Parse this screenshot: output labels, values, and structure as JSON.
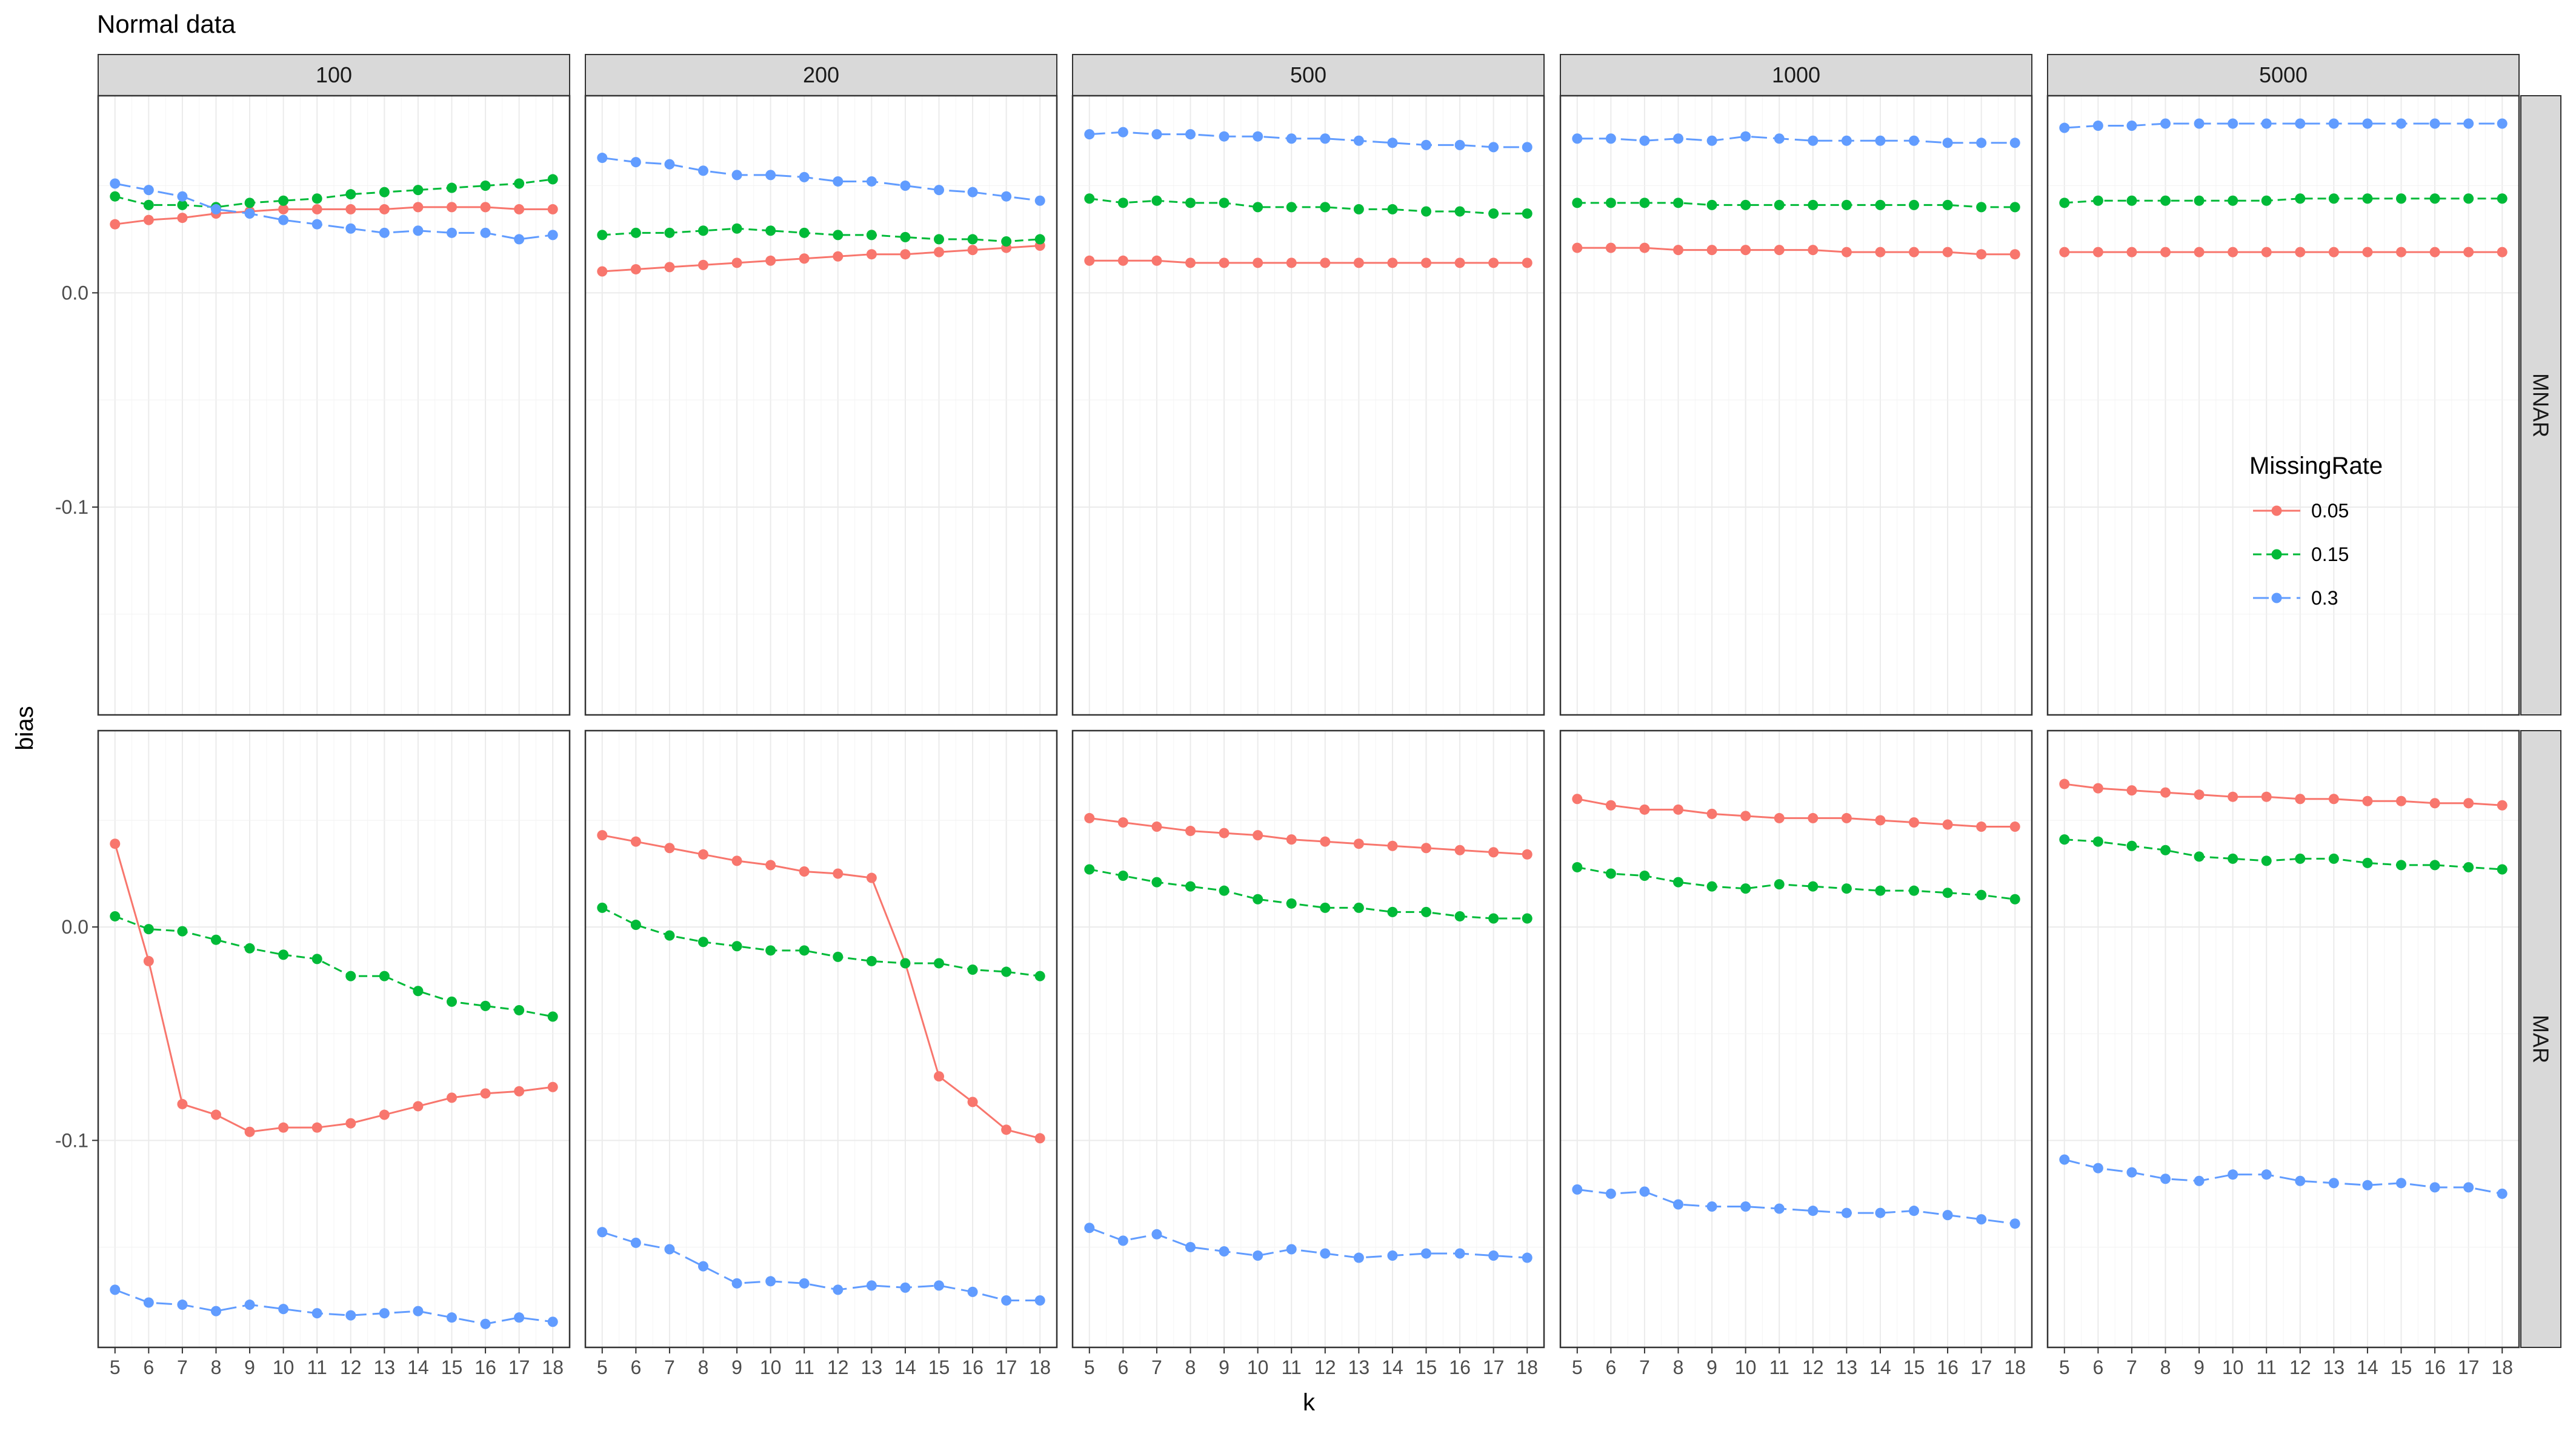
{
  "chart_data": {
    "type": "line",
    "title": "Normal data",
    "xlabel": "k",
    "ylabel": "bias",
    "x": [
      5,
      6,
      7,
      8,
      9,
      10,
      11,
      12,
      13,
      14,
      15,
      16,
      17,
      18
    ],
    "xlim": [
      4.5,
      18.5
    ],
    "ylim": [
      -0.197,
      0.092
    ],
    "y_ticks": [
      0.0,
      -0.1
    ],
    "y_tick_labels": [
      "0.0",
      "-0.1"
    ],
    "grid": true,
    "legend": {
      "title": "MissingRate",
      "placement": "right",
      "entries": [
        {
          "label": "0.05",
          "color": "#F8766D",
          "linetype": "solid"
        },
        {
          "label": "0.15",
          "color": "#00BA38",
          "linetype": "dashed"
        },
        {
          "label": "0.3",
          "color": "#619CFF",
          "linetype": "longdash"
        }
      ]
    },
    "col_facets": [
      "100",
      "200",
      "500",
      "1000",
      "5000"
    ],
    "row_facets": [
      "MNAR",
      "MAR"
    ],
    "panels": [
      {
        "row": "MNAR",
        "col": "100",
        "series": [
          {
            "name": "0.05",
            "values": [
              0.032,
              0.034,
              0.035,
              0.037,
              0.038,
              0.039,
              0.039,
              0.039,
              0.039,
              0.04,
              0.04,
              0.04,
              0.039,
              0.039
            ]
          },
          {
            "name": "0.15",
            "values": [
              0.045,
              0.041,
              0.041,
              0.04,
              0.042,
              0.043,
              0.044,
              0.046,
              0.047,
              0.048,
              0.049,
              0.05,
              0.051,
              0.053
            ]
          },
          {
            "name": "0.3",
            "values": [
              0.051,
              0.048,
              0.045,
              0.039,
              0.037,
              0.034,
              0.032,
              0.03,
              0.028,
              0.029,
              0.028,
              0.028,
              0.025,
              0.027
            ]
          }
        ]
      },
      {
        "row": "MNAR",
        "col": "200",
        "series": [
          {
            "name": "0.05",
            "values": [
              0.01,
              0.011,
              0.012,
              0.013,
              0.014,
              0.015,
              0.016,
              0.017,
              0.018,
              0.018,
              0.019,
              0.02,
              0.021,
              0.022
            ]
          },
          {
            "name": "0.15",
            "values": [
              0.027,
              0.028,
              0.028,
              0.029,
              0.03,
              0.029,
              0.028,
              0.027,
              0.027,
              0.026,
              0.025,
              0.025,
              0.024,
              0.025
            ]
          },
          {
            "name": "0.3",
            "values": [
              0.063,
              0.061,
              0.06,
              0.057,
              0.055,
              0.055,
              0.054,
              0.052,
              0.052,
              0.05,
              0.048,
              0.047,
              0.045,
              0.043
            ]
          }
        ]
      },
      {
        "row": "MNAR",
        "col": "500",
        "series": [
          {
            "name": "0.05",
            "values": [
              0.015,
              0.015,
              0.015,
              0.014,
              0.014,
              0.014,
              0.014,
              0.014,
              0.014,
              0.014,
              0.014,
              0.014,
              0.014,
              0.014
            ]
          },
          {
            "name": "0.15",
            "values": [
              0.044,
              0.042,
              0.043,
              0.042,
              0.042,
              0.04,
              0.04,
              0.04,
              0.039,
              0.039,
              0.038,
              0.038,
              0.037,
              0.037
            ]
          },
          {
            "name": "0.3",
            "values": [
              0.074,
              0.075,
              0.074,
              0.074,
              0.073,
              0.073,
              0.072,
              0.072,
              0.071,
              0.07,
              0.069,
              0.069,
              0.068,
              0.068
            ]
          }
        ]
      },
      {
        "row": "MNAR",
        "col": "1000",
        "series": [
          {
            "name": "0.05",
            "values": [
              0.021,
              0.021,
              0.021,
              0.02,
              0.02,
              0.02,
              0.02,
              0.02,
              0.019,
              0.019,
              0.019,
              0.019,
              0.018,
              0.018
            ]
          },
          {
            "name": "0.15",
            "values": [
              0.042,
              0.042,
              0.042,
              0.042,
              0.041,
              0.041,
              0.041,
              0.041,
              0.041,
              0.041,
              0.041,
              0.041,
              0.04,
              0.04
            ]
          },
          {
            "name": "0.3",
            "values": [
              0.072,
              0.072,
              0.071,
              0.072,
              0.071,
              0.073,
              0.072,
              0.071,
              0.071,
              0.071,
              0.071,
              0.07,
              0.07,
              0.07
            ]
          }
        ]
      },
      {
        "row": "MNAR",
        "col": "5000",
        "series": [
          {
            "name": "0.05",
            "values": [
              0.019,
              0.019,
              0.019,
              0.019,
              0.019,
              0.019,
              0.019,
              0.019,
              0.019,
              0.019,
              0.019,
              0.019,
              0.019,
              0.019
            ]
          },
          {
            "name": "0.15",
            "values": [
              0.042,
              0.043,
              0.043,
              0.043,
              0.043,
              0.043,
              0.043,
              0.044,
              0.044,
              0.044,
              0.044,
              0.044,
              0.044,
              0.044
            ]
          },
          {
            "name": "0.3",
            "values": [
              0.077,
              0.078,
              0.078,
              0.079,
              0.079,
              0.079,
              0.079,
              0.079,
              0.079,
              0.079,
              0.079,
              0.079,
              0.079,
              0.079
            ]
          }
        ]
      },
      {
        "row": "MAR",
        "col": "100",
        "series": [
          {
            "name": "0.05",
            "values": [
              0.039,
              -0.016,
              -0.083,
              -0.088,
              -0.096,
              -0.094,
              -0.094,
              -0.092,
              -0.088,
              -0.084,
              -0.08,
              -0.078,
              -0.077,
              -0.075
            ]
          },
          {
            "name": "0.15",
            "values": [
              0.005,
              -0.001,
              -0.002,
              -0.006,
              -0.01,
              -0.013,
              -0.015,
              -0.023,
              -0.023,
              -0.03,
              -0.035,
              -0.037,
              -0.039,
              -0.042
            ]
          },
          {
            "name": "0.3",
            "values": [
              -0.17,
              -0.176,
              -0.177,
              -0.18,
              -0.177,
              -0.179,
              -0.181,
              -0.182,
              -0.181,
              -0.18,
              -0.183,
              -0.186,
              -0.183,
              -0.185
            ]
          }
        ]
      },
      {
        "row": "MAR",
        "col": "200",
        "series": [
          {
            "name": "0.05",
            "values": [
              0.043,
              0.04,
              0.037,
              0.034,
              0.031,
              0.029,
              0.026,
              0.025,
              0.023,
              -0.017,
              -0.07,
              -0.082,
              -0.095,
              -0.099
            ]
          },
          {
            "name": "0.15",
            "values": [
              0.009,
              0.001,
              -0.004,
              -0.007,
              -0.009,
              -0.011,
              -0.011,
              -0.014,
              -0.016,
              -0.017,
              -0.017,
              -0.02,
              -0.021,
              -0.023
            ]
          },
          {
            "name": "0.3",
            "values": [
              -0.143,
              -0.148,
              -0.151,
              -0.159,
              -0.167,
              -0.166,
              -0.167,
              -0.17,
              -0.168,
              -0.169,
              -0.168,
              -0.171,
              -0.175,
              -0.175
            ]
          }
        ]
      },
      {
        "row": "MAR",
        "col": "500",
        "series": [
          {
            "name": "0.05",
            "values": [
              0.051,
              0.049,
              0.047,
              0.045,
              0.044,
              0.043,
              0.041,
              0.04,
              0.039,
              0.038,
              0.037,
              0.036,
              0.035,
              0.034
            ]
          },
          {
            "name": "0.15",
            "values": [
              0.027,
              0.024,
              0.021,
              0.019,
              0.017,
              0.013,
              0.011,
              0.009,
              0.009,
              0.007,
              0.007,
              0.005,
              0.004,
              0.004
            ]
          },
          {
            "name": "0.3",
            "values": [
              -0.141,
              -0.147,
              -0.144,
              -0.15,
              -0.152,
              -0.154,
              -0.151,
              -0.153,
              -0.155,
              -0.154,
              -0.153,
              -0.153,
              -0.154,
              -0.155
            ]
          }
        ]
      },
      {
        "row": "MAR",
        "col": "1000",
        "series": [
          {
            "name": "0.05",
            "values": [
              0.06,
              0.057,
              0.055,
              0.055,
              0.053,
              0.052,
              0.051,
              0.051,
              0.051,
              0.05,
              0.049,
              0.048,
              0.047,
              0.047
            ]
          },
          {
            "name": "0.15",
            "values": [
              0.028,
              0.025,
              0.024,
              0.021,
              0.019,
              0.018,
              0.02,
              0.019,
              0.018,
              0.017,
              0.017,
              0.016,
              0.015,
              0.013
            ]
          },
          {
            "name": "0.3",
            "values": [
              -0.123,
              -0.125,
              -0.124,
              -0.13,
              -0.131,
              -0.131,
              -0.132,
              -0.133,
              -0.134,
              -0.134,
              -0.133,
              -0.135,
              -0.137,
              -0.139
            ]
          }
        ]
      },
      {
        "row": "MAR",
        "col": "5000",
        "series": [
          {
            "name": "0.05",
            "values": [
              0.067,
              0.065,
              0.064,
              0.063,
              0.062,
              0.061,
              0.061,
              0.06,
              0.06,
              0.059,
              0.059,
              0.058,
              0.058,
              0.057
            ]
          },
          {
            "name": "0.15",
            "values": [
              0.041,
              0.04,
              0.038,
              0.036,
              0.033,
              0.032,
              0.031,
              0.032,
              0.032,
              0.03,
              0.029,
              0.029,
              0.028,
              0.027
            ]
          },
          {
            "name": "0.3",
            "values": [
              -0.109,
              -0.113,
              -0.115,
              -0.118,
              -0.119,
              -0.116,
              -0.116,
              -0.119,
              -0.12,
              -0.121,
              -0.12,
              -0.122,
              -0.122,
              -0.125
            ]
          }
        ]
      }
    ]
  }
}
